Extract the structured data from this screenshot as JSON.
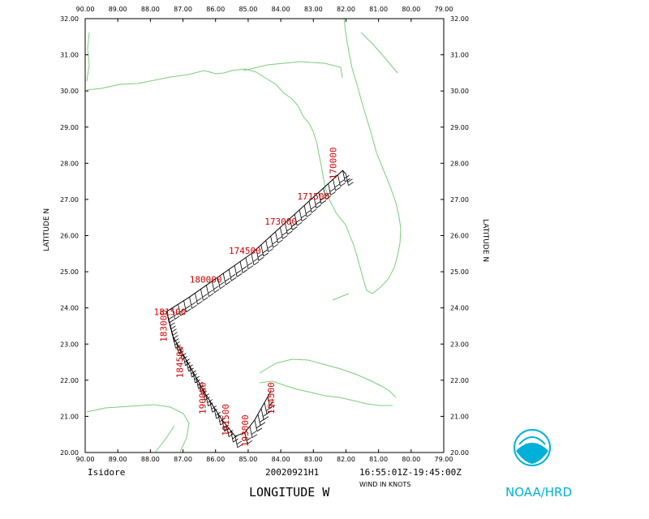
{
  "map": {
    "lon_range": [
      90.0,
      79.0
    ],
    "lat_range": [
      20.0,
      32.0
    ],
    "lon_ticks": [
      "90.00",
      "89.00",
      "88.00",
      "87.00",
      "86.00",
      "85.00",
      "84.00",
      "83.00",
      "82.00",
      "81.00",
      "80.00",
      "79.00"
    ],
    "lat_ticks": [
      "20.00",
      "21.00",
      "22.00",
      "23.00",
      "24.00",
      "25.00",
      "26.00",
      "27.00",
      "28.00",
      "29.00",
      "30.00",
      "31.00",
      "32.00"
    ],
    "left_axis_label": "LATITUDE   N",
    "right_axis_label": "LATITUDE   N",
    "coast_color": "#7ccc7c",
    "track_color": "#000000",
    "label_color": "#cc0000"
  },
  "track": [
    {
      "lon": 82.0,
      "lat": 27.7
    },
    {
      "lon": 82.1,
      "lat": 27.8
    },
    {
      "lon": 84.9,
      "lat": 25.5
    },
    {
      "lon": 86.8,
      "lat": 24.3
    },
    {
      "lon": 87.5,
      "lat": 23.9
    },
    {
      "lon": 87.3,
      "lat": 23.2
    },
    {
      "lon": 86.3,
      "lat": 21.6
    },
    {
      "lon": 85.8,
      "lat": 20.9
    },
    {
      "lon": 85.4,
      "lat": 20.45
    },
    {
      "lon": 85.1,
      "lat": 20.55
    },
    {
      "lon": 84.8,
      "lat": 20.9
    },
    {
      "lon": 84.3,
      "lat": 21.7
    }
  ],
  "time_labels": [
    {
      "text": "170000",
      "lon": 82.3,
      "lat": 28.0,
      "rot": -90
    },
    {
      "text": "171500",
      "lon": 83.0,
      "lat": 27.0,
      "rot": 0
    },
    {
      "text": "173000",
      "lon": 84.0,
      "lat": 26.3,
      "rot": 0
    },
    {
      "text": "174500",
      "lon": 85.1,
      "lat": 25.5,
      "rot": 0
    },
    {
      "text": "180000",
      "lon": 86.3,
      "lat": 24.7,
      "rot": 0
    },
    {
      "text": "181500",
      "lon": 87.4,
      "lat": 23.8,
      "rot": 0
    },
    {
      "text": "183000",
      "lon": 87.5,
      "lat": 23.5,
      "rot": -90
    },
    {
      "text": "184500",
      "lon": 87.0,
      "lat": 22.5,
      "rot": -90
    },
    {
      "text": "190000",
      "lon": 86.3,
      "lat": 21.5,
      "rot": -90
    },
    {
      "text": "191500",
      "lon": 85.6,
      "lat": 20.9,
      "rot": -90
    },
    {
      "text": "193000",
      "lon": 85.0,
      "lat": 20.6,
      "rot": -90
    },
    {
      "text": "194500",
      "lon": 84.2,
      "lat": 21.5,
      "rot": -90
    }
  ],
  "footer": {
    "storm": "Isidore",
    "flight": "20020921H1",
    "time_range": "16:55:01Z-19:45:00Z",
    "x_axis_title": "LONGITUDE   W",
    "wind_units": "WIND IN KNOTS",
    "credit": "NOAA/HRD",
    "logo_text": "NOAA"
  }
}
